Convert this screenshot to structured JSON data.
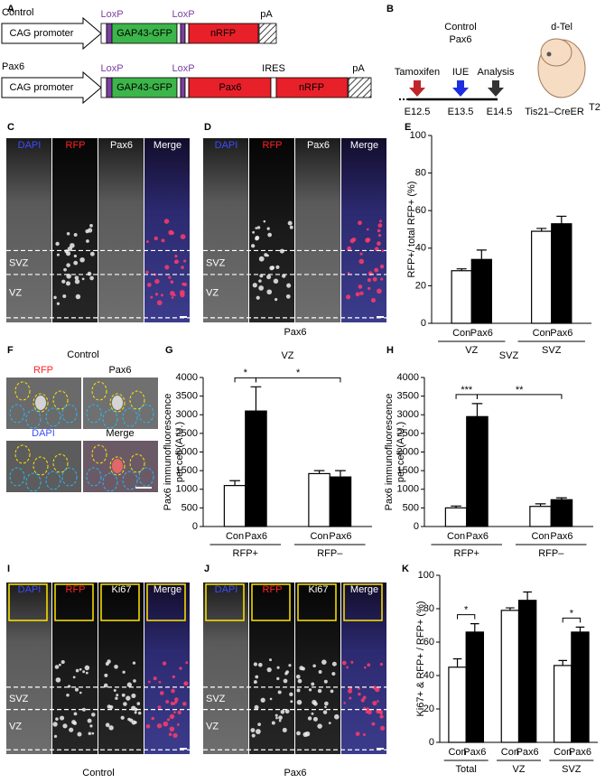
{
  "panel_labels": [
    "A",
    "B",
    "C",
    "D",
    "E",
    "F",
    "G",
    "H",
    "I",
    "J",
    "K"
  ],
  "construct": {
    "rows": [
      {
        "name": "Control",
        "promoter": "CAG promoter",
        "loxp": "LoxP",
        "parts": [
          "GAP43-GFP",
          "nRFP"
        ],
        "pa": "pA"
      },
      {
        "name": "Pax6",
        "promoter": "CAG promoter",
        "loxp": "LoxP",
        "parts": [
          "GAP43-GFP",
          "Pax6",
          "nRFP"
        ],
        "ires": "IRES",
        "pa": "pA"
      }
    ]
  },
  "timeline": {
    "groups": [
      "Control",
      "Pax6"
    ],
    "events": [
      "Tamoxifen",
      "IUE",
      "Analysis"
    ],
    "stages": [
      "E12.5",
      "E13.5",
      "E14.5"
    ],
    "region": "d-Tel",
    "mouse": "Tis21–CreER",
    "mouse_sup": "T2"
  },
  "images": {
    "C": {
      "channels": [
        "DAPI",
        "RFP",
        "Pax6",
        "Merge"
      ],
      "zones": [
        "SVZ",
        "VZ"
      ]
    },
    "D": {
      "channels": [
        "DAPI",
        "RFP",
        "Pax6",
        "Merge"
      ],
      "zones": [
        "SVZ",
        "VZ"
      ],
      "caption": "Pax6"
    },
    "F": {
      "caption": "Control",
      "channels": [
        "RFP",
        "Pax6",
        "DAPI",
        "Merge"
      ]
    },
    "I": {
      "channels": [
        "DAPI",
        "RFP",
        "Ki67",
        "Merge"
      ],
      "zones": [
        "SVZ",
        "VZ"
      ],
      "caption": "Control"
    },
    "J": {
      "channels": [
        "DAPI",
        "RFP",
        "Ki67",
        "Merge"
      ],
      "zones": [
        "SVZ",
        "VZ"
      ],
      "caption": "Pax6"
    }
  },
  "chart_data": [
    {
      "type": "bar",
      "y_label": [
        "RFP+/ total RFP+ (%)"
      ],
      "categories": [
        "VZ",
        "SVZ"
      ],
      "series": [
        {
          "name": "Con",
          "color": "#ffffff",
          "values": [
            28,
            49
          ],
          "errors": [
            1,
            1.5
          ]
        },
        {
          "name": "Pax6",
          "color": "#000000",
          "values": [
            34,
            53
          ],
          "errors": [
            5,
            4
          ]
        }
      ],
      "ylim": [
        0,
        100
      ],
      "yticks": [
        0,
        20,
        40,
        60,
        80,
        100
      ]
    },
    {
      "type": "bar",
      "title": "VZ",
      "y_label": [
        "Pax6 immunofluorescence",
        "per cell (A.U.)"
      ],
      "categories": [
        "RFP+",
        "RFP–"
      ],
      "series": [
        {
          "name": "Con",
          "color": "#ffffff",
          "values": [
            1100,
            1420
          ],
          "errors": [
            130,
            80
          ]
        },
        {
          "name": "Pax6",
          "color": "#000000",
          "values": [
            3100,
            1330
          ],
          "errors": [
            650,
            170
          ]
        }
      ],
      "ylim": [
        0,
        4000
      ],
      "yticks": [
        0,
        500,
        1000,
        1500,
        2000,
        2500,
        3000,
        3500,
        4000
      ],
      "annotations": [
        "*",
        "*"
      ]
    },
    {
      "type": "bar",
      "title": "SVZ",
      "y_label": [
        "Pax6 immunofluorescence",
        "per cell (A.U.)"
      ],
      "categories": [
        "RFP+",
        "RFP–"
      ],
      "series": [
        {
          "name": "Con",
          "color": "#ffffff",
          "values": [
            500,
            540
          ],
          "errors": [
            50,
            70
          ]
        },
        {
          "name": "Pax6",
          "color": "#000000",
          "values": [
            2950,
            720
          ],
          "errors": [
            350,
            50
          ]
        }
      ],
      "ylim": [
        0,
        4000
      ],
      "yticks": [
        0,
        500,
        1000,
        1500,
        2000,
        2500,
        3000,
        3500,
        4000
      ],
      "annotations": [
        "***",
        "**"
      ]
    },
    {
      "type": "bar",
      "y_label": [
        "Ki67+ & RFP+ / RFP+ (%)"
      ],
      "categories": [
        "Total",
        "VZ",
        "SVZ"
      ],
      "series": [
        {
          "name": "Con",
          "color": "#ffffff",
          "values": [
            45,
            79,
            46
          ],
          "errors": [
            5,
            1.5,
            3
          ]
        },
        {
          "name": "Pax6",
          "color": "#000000",
          "values": [
            66,
            85,
            66
          ],
          "errors": [
            5,
            5,
            3
          ]
        }
      ],
      "ylim": [
        0,
        100
      ],
      "yticks": [
        0,
        20,
        40,
        60,
        80,
        100
      ],
      "annotations": [
        "*",
        "*"
      ]
    }
  ]
}
